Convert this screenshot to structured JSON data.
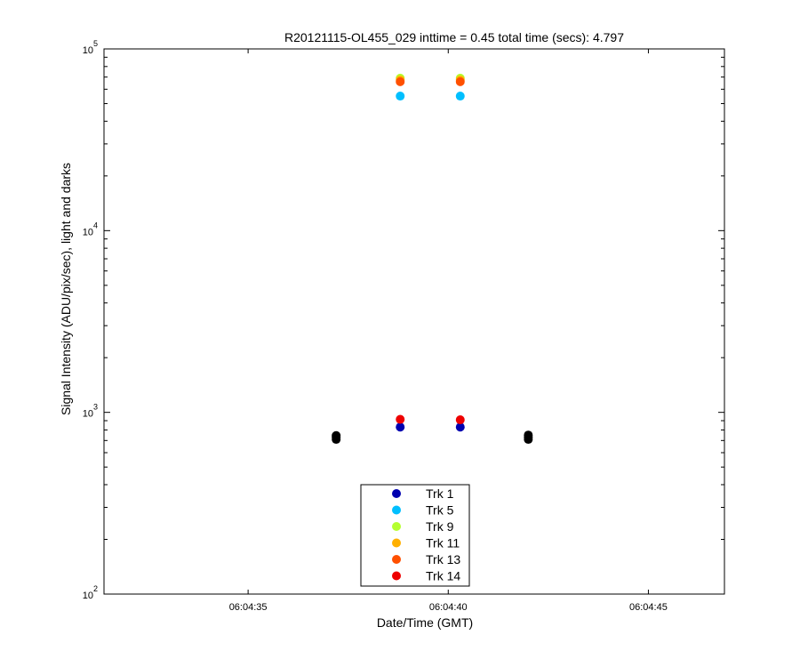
{
  "chart_data": {
    "type": "scatter",
    "title": "R20121115-OL455_029 inttime = 0.45 total time (secs): 4.797",
    "xlabel": "Date/Time (GMT)",
    "ylabel": "Signal Intensity (ADU/pix/sec), light and darks",
    "yscale": "log",
    "xlim": [
      "06:04:31.4",
      "06:04:46.9"
    ],
    "ylim": [
      100,
      100000
    ],
    "x_ticks": [
      "06:04:35",
      "06:04:40",
      "06:04:45"
    ],
    "y_ticks": [
      {
        "value": 100,
        "base": "10",
        "exp": "2"
      },
      {
        "value": 1000,
        "base": "10",
        "exp": "3"
      },
      {
        "value": 10000,
        "base": "10",
        "exp": "4"
      },
      {
        "value": 100000,
        "base": "10",
        "exp": "5"
      }
    ],
    "grid": false,
    "legend_position": "bottom-center",
    "series": [
      {
        "name": "Trk 1",
        "color": "#0000b0",
        "points": [
          [
            "06:04:38.8",
            830
          ],
          [
            "06:04:40.3",
            830
          ]
        ]
      },
      {
        "name": "Trk 5",
        "color": "#00bfff",
        "points": [
          [
            "06:04:38.8",
            55000
          ],
          [
            "06:04:40.3",
            55000
          ]
        ]
      },
      {
        "name": "Trk 9",
        "color": "#b5ff30",
        "points": [
          [
            "06:04:38.8",
            69000
          ],
          [
            "06:04:40.3",
            69000
          ]
        ]
      },
      {
        "name": "Trk 11",
        "color": "#ffb000",
        "points": [
          [
            "06:04:38.8",
            67500
          ],
          [
            "06:04:40.3",
            67500
          ]
        ]
      },
      {
        "name": "Trk 13",
        "color": "#ff5000",
        "points": [
          [
            "06:04:38.8",
            66000
          ],
          [
            "06:04:40.3",
            66000
          ]
        ]
      },
      {
        "name": "Trk 14",
        "color": "#ee0000",
        "points": [
          [
            "06:04:38.8",
            915
          ],
          [
            "06:04:40.3",
            910
          ]
        ]
      },
      {
        "color": "#000000",
        "points": [
          [
            "06:04:37.2",
            710
          ],
          [
            "06:04:37.2",
            730
          ],
          [
            "06:04:37.2",
            745
          ],
          [
            "06:04:42.0",
            710
          ],
          [
            "06:04:42.0",
            730
          ],
          [
            "06:04:42.0",
            750
          ]
        ]
      }
    ]
  }
}
